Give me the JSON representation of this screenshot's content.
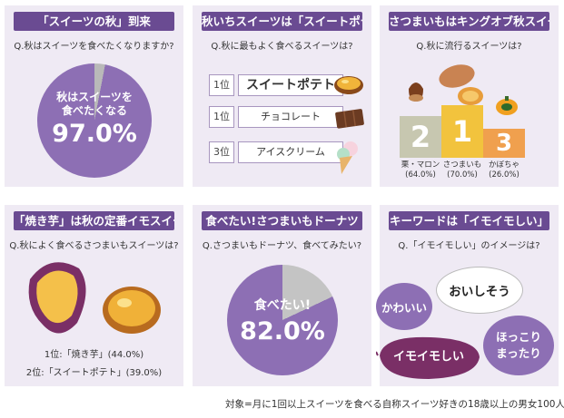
{
  "panels": {
    "p1": {
      "title": "「スイーツの秋」到来",
      "question": "Q.秋はスイーツを食べたくなりますか?",
      "answer_line1": "秋はスイーツを",
      "answer_line2": "食べたくなる",
      "percent_label": "97.0%",
      "percent": 97.0
    },
    "p2": {
      "title": "秋いちスイーツは「スイートポテト」",
      "question": "Q.秋に最もよく食べるスイーツは?",
      "ranks": [
        {
          "rank": "1位",
          "label": "スイートポテト"
        },
        {
          "rank": "1位",
          "label": "チョコレート"
        },
        {
          "rank": "3位",
          "label": "アイスクリーム"
        }
      ]
    },
    "p3": {
      "title": "さつまいもはキングオブ秋スイーツ",
      "question": "Q.秋に流行るスイーツは?",
      "podium": [
        {
          "place": "2",
          "name": "栗・マロン",
          "pct": "(64.0%)"
        },
        {
          "place": "1",
          "name": "さつまいも",
          "pct": "(70.0%)"
        },
        {
          "place": "3",
          "name": "かぼちゃ",
          "pct": "(26.0%)"
        }
      ]
    },
    "p4": {
      "title": "「焼き芋」は秋の定番イモスイーツ",
      "question": "Q.秋によく食べるさつまいもスイーツは?",
      "line1": "1位:「焼き芋」(44.0%)",
      "line2": "2位:「スイートポテト」(39.0%)"
    },
    "p5": {
      "title": "食べたい!さつまいもドーナツ",
      "question": "Q.さつまいもドーナツ、食べてみたい?",
      "answer": "食べたい!",
      "percent_label": "82.0%",
      "percent": 82.0
    },
    "p6": {
      "title": "キーワードは「イモイモしい」",
      "question": "Q.「イモイモしい」のイメージは?",
      "bubble_kawaii": "かわいい",
      "bubble_oishi": "おいしそう",
      "bubble_hokkori_1": "ほっこり",
      "bubble_hokkori_2": "まったり",
      "bubble_imoimo": "イモイモしい"
    }
  },
  "footnote": "対象=月に1回以上スイーツを食べる自称スイーツ好きの18歳以上の男女100人",
  "colors": {
    "panel_bg": "#efeaf4",
    "title_bg": "#6a4b92",
    "pie_purple": "#8d6fb4",
    "pie_gray": "#b9b9b9",
    "podium_1": "#f2c33d",
    "podium_2": "#c7c7b0",
    "podium_3": "#f0a04e"
  }
}
